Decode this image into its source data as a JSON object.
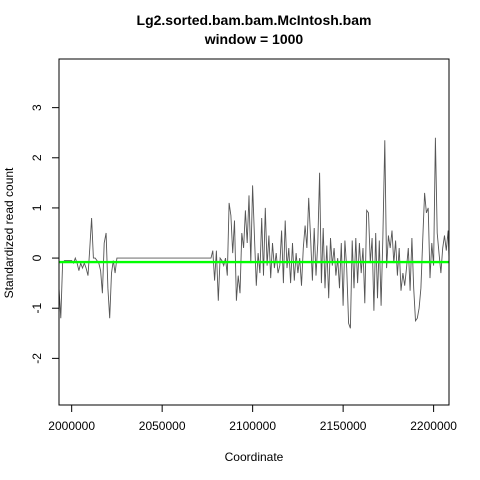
{
  "chart_data": {
    "type": "line",
    "title": "Lg2.sorted.bam.bam.McIntosh.bam",
    "subtitle": "window = 1000",
    "xlabel": "Coordinate",
    "ylabel": "Standardized read count",
    "xlim": [
      1993000,
      2208500
    ],
    "ylim": [
      -2.93,
      3.97
    ],
    "x_ticks": [
      2000000,
      2050000,
      2100000,
      2150000,
      2200000
    ],
    "x_tick_labels": [
      "2000000",
      "2050000",
      "2100000",
      "2150000",
      "2200000"
    ],
    "y_ticks": [
      -2,
      -1,
      0,
      1,
      2,
      3
    ],
    "y_tick_labels": [
      "-2",
      "-1",
      "0",
      "1",
      "2",
      "3"
    ],
    "grid": false,
    "series": [
      {
        "color": "#555555",
        "points": [
          [
            1993000,
            -0.6
          ],
          [
            1994000,
            -1.2
          ],
          [
            1995000,
            -0.1
          ],
          [
            1996000,
            -0.05
          ],
          [
            1997000,
            -0.05
          ],
          [
            1998000,
            -0.05
          ],
          [
            1999000,
            -0.05
          ],
          [
            2000000,
            -0.05
          ],
          [
            2001000,
            -0.1
          ],
          [
            2002000,
            0.0
          ],
          [
            2003000,
            -0.1
          ],
          [
            2004000,
            -0.25
          ],
          [
            2005000,
            -0.1
          ],
          [
            2006000,
            -0.2
          ],
          [
            2007000,
            -0.1
          ],
          [
            2008000,
            -0.2
          ],
          [
            2009000,
            -0.35
          ],
          [
            2010000,
            0.2
          ],
          [
            2011000,
            0.8
          ],
          [
            2012000,
            0.0
          ],
          [
            2013000,
            0.0
          ],
          [
            2014000,
            -0.05
          ],
          [
            2015000,
            -0.1
          ],
          [
            2016000,
            -0.25
          ],
          [
            2017000,
            -0.7
          ],
          [
            2018000,
            0.3
          ],
          [
            2019000,
            0.5
          ],
          [
            2020000,
            -0.6
          ],
          [
            2021000,
            -1.2
          ],
          [
            2022000,
            -0.3
          ],
          [
            2023000,
            -0.05
          ],
          [
            2024000,
            -0.3
          ],
          [
            2025000,
            0.0
          ],
          [
            2026000,
            0.0
          ],
          [
            2077000,
            0.0
          ],
          [
            2078000,
            0.15
          ],
          [
            2079000,
            -0.45
          ],
          [
            2080000,
            0.15
          ],
          [
            2081000,
            -0.85
          ],
          [
            2082000,
            0.0
          ],
          [
            2083000,
            -0.05
          ],
          [
            2084000,
            -0.15
          ],
          [
            2085000,
            0.0
          ],
          [
            2086000,
            -0.35
          ],
          [
            2087000,
            1.1
          ],
          [
            2088000,
            0.85
          ],
          [
            2089000,
            0.1
          ],
          [
            2090000,
            0.75
          ],
          [
            2091000,
            -0.85
          ],
          [
            2092000,
            -0.35
          ],
          [
            2093000,
            -0.7
          ],
          [
            2094000,
            0.5
          ],
          [
            2095000,
            0.2
          ],
          [
            2096000,
            0.95
          ],
          [
            2097000,
            0.3
          ],
          [
            2098000,
            1.25
          ],
          [
            2099000,
            -0.1
          ],
          [
            2100000,
            1.45
          ],
          [
            2101000,
            0.4
          ],
          [
            2102000,
            -0.55
          ],
          [
            2103000,
            0.1
          ],
          [
            2104000,
            -0.3
          ],
          [
            2105000,
            0.8
          ],
          [
            2106000,
            -0.35
          ],
          [
            2107000,
            1.0
          ],
          [
            2108000,
            -0.15
          ],
          [
            2109000,
            0.45
          ],
          [
            2110000,
            -0.4
          ],
          [
            2111000,
            0.3
          ],
          [
            2112000,
            -0.2
          ],
          [
            2113000,
            0.1
          ],
          [
            2114000,
            -0.3
          ],
          [
            2115000,
            -0.15
          ],
          [
            2116000,
            0.55
          ],
          [
            2117000,
            -0.5
          ],
          [
            2118000,
            0.75
          ],
          [
            2119000,
            -0.2
          ],
          [
            2120000,
            0.2
          ],
          [
            2121000,
            -0.5
          ],
          [
            2122000,
            0.3
          ],
          [
            2123000,
            -0.45
          ],
          [
            2124000,
            0.1
          ],
          [
            2125000,
            -0.3
          ],
          [
            2126000,
            0.0
          ],
          [
            2127000,
            -0.55
          ],
          [
            2128000,
            0.2
          ],
          [
            2129000,
            0.65
          ],
          [
            2130000,
            0.2
          ],
          [
            2131000,
            1.2
          ],
          [
            2132000,
            0.4
          ],
          [
            2133000,
            -0.45
          ],
          [
            2134000,
            0.6
          ],
          [
            2135000,
            -0.35
          ],
          [
            2136000,
            0.3
          ],
          [
            2137000,
            1.7
          ],
          [
            2138000,
            -0.5
          ],
          [
            2139000,
            0.6
          ],
          [
            2140000,
            -0.6
          ],
          [
            2141000,
            0.25
          ],
          [
            2142000,
            -0.8
          ],
          [
            2143000,
            0.4
          ],
          [
            2144000,
            -0.15
          ],
          [
            2145000,
            0.2
          ],
          [
            2146000,
            -0.35
          ],
          [
            2147000,
            0.0
          ],
          [
            2148000,
            -0.6
          ],
          [
            2149000,
            0.3
          ],
          [
            2150000,
            -0.95
          ],
          [
            2151000,
            0.35
          ],
          [
            2152000,
            -0.2
          ],
          [
            2153000,
            -1.3
          ],
          [
            2154000,
            -1.4
          ],
          [
            2155000,
            0.35
          ],
          [
            2156000,
            -0.6
          ],
          [
            2157000,
            0.4
          ],
          [
            2158000,
            -0.5
          ],
          [
            2159000,
            0.3
          ],
          [
            2160000,
            -0.3
          ],
          [
            2161000,
            0.2
          ],
          [
            2162000,
            -0.9
          ],
          [
            2163000,
            0.95
          ],
          [
            2164000,
            0.9
          ],
          [
            2165000,
            -0.1
          ],
          [
            2166000,
            0.4
          ],
          [
            2167000,
            -1.05
          ],
          [
            2168000,
            0.5
          ],
          [
            2169000,
            -0.8
          ],
          [
            2170000,
            0.35
          ],
          [
            2171000,
            -0.95
          ],
          [
            2172000,
            0.45
          ],
          [
            2173000,
            2.35
          ],
          [
            2174000,
            -0.2
          ],
          [
            2175000,
            0.45
          ],
          [
            2176000,
            0.2
          ],
          [
            2177000,
            0.55
          ],
          [
            2178000,
            -0.1
          ],
          [
            2179000,
            0.35
          ],
          [
            2180000,
            -0.35
          ],
          [
            2181000,
            0.2
          ],
          [
            2182000,
            -0.65
          ],
          [
            2183000,
            -0.3
          ],
          [
            2184000,
            -0.55
          ],
          [
            2185000,
            -0.2
          ],
          [
            2186000,
            0.2
          ],
          [
            2187000,
            -0.65
          ],
          [
            2188000,
            0.4
          ],
          [
            2189000,
            -0.6
          ],
          [
            2190000,
            -1.25
          ],
          [
            2191000,
            -1.2
          ],
          [
            2192000,
            -1.0
          ],
          [
            2193000,
            -0.6
          ],
          [
            2194000,
            0.4
          ],
          [
            2195000,
            1.3
          ],
          [
            2196000,
            0.9
          ],
          [
            2197000,
            1.0
          ],
          [
            2198000,
            -0.4
          ],
          [
            2199000,
            0.3
          ],
          [
            2200000,
            -0.15
          ],
          [
            2201000,
            2.4
          ],
          [
            2202000,
            0.5
          ],
          [
            2203000,
            0.1
          ],
          [
            2204000,
            -0.3
          ],
          [
            2205000,
            0.2
          ],
          [
            2206000,
            0.45
          ],
          [
            2207000,
            0.15
          ],
          [
            2208000,
            0.55
          ],
          [
            2208500,
            0.0
          ]
        ]
      },
      {
        "color": "#00ff00",
        "points": [
          [
            1993000,
            -0.08
          ],
          [
            2208500,
            -0.08
          ]
        ]
      }
    ]
  }
}
